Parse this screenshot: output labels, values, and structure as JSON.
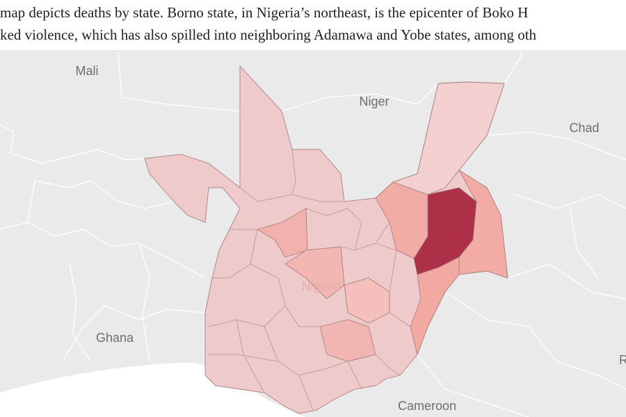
{
  "caption": {
    "lines": [
      "map depicts deaths by state. Borno state, in Nigeria’s northeast, is the epicenter of Boko H",
      "ked violence, which has also spilled into neighboring Adamawa and Yobe states, among oth"
    ]
  },
  "map": {
    "labels": [
      "Mali",
      "Niger",
      "Chad",
      "Nigeria",
      "Ghana",
      "Cameroon",
      "R"
    ]
  }
}
